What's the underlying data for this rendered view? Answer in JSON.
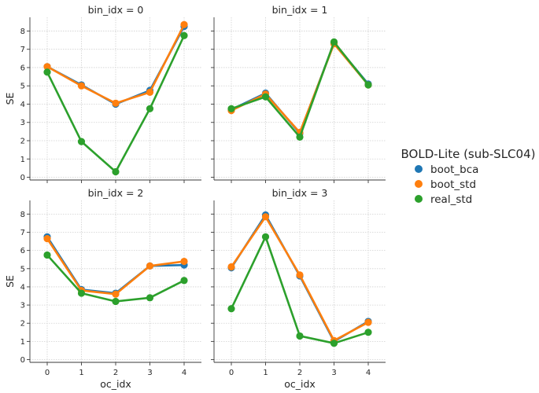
{
  "chart_data": {
    "type": "line",
    "xlabel": "oc_idx",
    "ylabel": "SE",
    "x": [
      0,
      1,
      2,
      3,
      4
    ],
    "xticks": [
      "0",
      "1",
      "2",
      "3",
      "4"
    ],
    "ylim": [
      -0.15,
      8.75
    ],
    "yticks": [
      "0",
      "1",
      "2",
      "3",
      "4",
      "5",
      "6",
      "7",
      "8"
    ],
    "grid": true,
    "legend": {
      "title": "BOLD-Lite (sub-SLC04)",
      "placement": "right",
      "entries": [
        "boot_bca",
        "boot_std",
        "real_std"
      ]
    },
    "colors": {
      "boot_bca": "#1f77b4",
      "boot_std": "#ff7f0e",
      "real_std": "#2ca02c"
    },
    "panels": [
      {
        "title": "bin_idx = 0",
        "series": [
          {
            "name": "boot_bca",
            "values": [
              6.05,
              5.05,
              4.0,
              4.75,
              8.25
            ]
          },
          {
            "name": "boot_std",
            "values": [
              6.05,
              5.0,
              4.05,
              4.65,
              8.35
            ]
          },
          {
            "name": "real_std",
            "values": [
              5.75,
              1.95,
              0.3,
              3.75,
              7.75
            ]
          }
        ]
      },
      {
        "title": "bin_idx = 1",
        "series": [
          {
            "name": "boot_bca",
            "values": [
              3.7,
              4.6,
              2.4,
              7.35,
              5.1
            ]
          },
          {
            "name": "boot_std",
            "values": [
              3.65,
              4.55,
              2.45,
              7.3,
              5.05
            ]
          },
          {
            "name": "real_std",
            "values": [
              3.75,
              4.4,
              2.2,
              7.4,
              5.05
            ]
          }
        ]
      },
      {
        "title": "bin_idx = 2",
        "series": [
          {
            "name": "boot_bca",
            "values": [
              6.75,
              3.85,
              3.65,
              5.15,
              5.2
            ]
          },
          {
            "name": "boot_std",
            "values": [
              6.65,
              3.8,
              3.6,
              5.15,
              5.4
            ]
          },
          {
            "name": "real_std",
            "values": [
              5.75,
              3.65,
              3.2,
              3.4,
              4.35
            ]
          }
        ]
      },
      {
        "title": "bin_idx = 3",
        "series": [
          {
            "name": "boot_bca",
            "values": [
              5.05,
              7.95,
              4.6,
              1.0,
              2.1
            ]
          },
          {
            "name": "boot_std",
            "values": [
              5.1,
              7.85,
              4.65,
              1.05,
              2.05
            ]
          },
          {
            "name": "real_std",
            "values": [
              2.8,
              6.75,
              1.3,
              0.9,
              1.5
            ]
          }
        ]
      }
    ]
  }
}
